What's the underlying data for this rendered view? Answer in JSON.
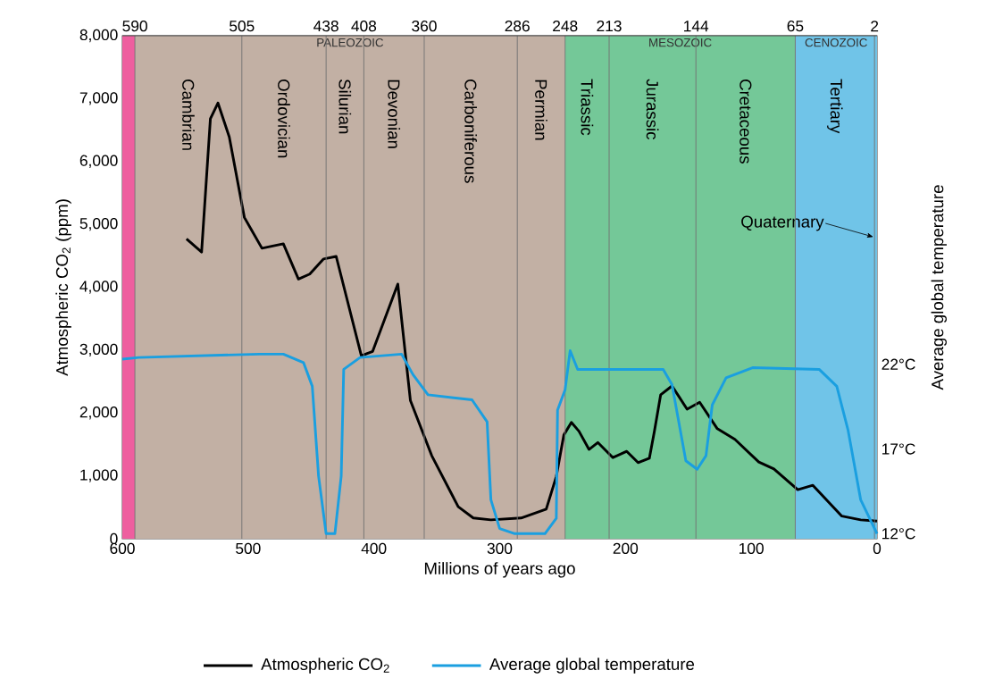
{
  "chart_data": {
    "type": "line",
    "xlabel": "Millions of years ago",
    "ylabel": "Atmospheric CO$_{2}$ (ppm)",
    "y2label": "Average global temperature",
    "xlim": [
      600,
      0
    ],
    "xticks": [
      600,
      500,
      400,
      300,
      200,
      100,
      0
    ],
    "x2lim": [
      600,
      0
    ],
    "x2ticks": [
      590,
      505,
      438,
      408,
      360,
      286,
      248,
      213,
      144,
      65,
      2
    ],
    "ylim": [
      0,
      8000
    ],
    "yticks": [
      {
        "value": 0,
        "label": "0"
      },
      {
        "value": 1000,
        "label": "1,000"
      },
      {
        "value": 2000,
        "label": "2,000"
      },
      {
        "value": 3000,
        "label": "3,000"
      },
      {
        "value": 4000,
        "label": "4,000"
      },
      {
        "value": 5000,
        "label": "5,000"
      },
      {
        "value": 6000,
        "label": "6,000"
      },
      {
        "value": 7000,
        "label": "7,000"
      },
      {
        "value": 8000,
        "label": "8,000"
      }
    ],
    "y2lim": [
      11.7,
      41.4
    ],
    "y2ticks": [
      {
        "value": 12,
        "label": "12°C"
      },
      {
        "value": 17,
        "label": "17°C"
      },
      {
        "value": 22,
        "label": "22°C"
      }
    ],
    "bands": [
      {
        "axis": "x",
        "from": 600,
        "to": 590,
        "color": "#ee5f9f"
      },
      {
        "axis": "x",
        "from": 590,
        "to": 248,
        "color": "#c2b0a4",
        "label": "PALEOZOIC"
      },
      {
        "axis": "x",
        "from": 248,
        "to": 65,
        "color": "#74c898",
        "label": "MESOZOIC"
      },
      {
        "axis": "x",
        "from": 65,
        "to": 0,
        "color": "#70c4e8",
        "label": "CENOZOIC"
      }
    ],
    "annotations": [
      "Cambrian",
      "Ordovician",
      "Silurian",
      "Devonian",
      "Carboniferous",
      "Permian",
      "Triassic",
      "Jurassic",
      "Cretaceous",
      "Tertiary",
      "Quaternary"
    ],
    "grid": "x",
    "legend": "bottom",
    "marker": "none",
    "line_style": "solid",
    "series": [
      {
        "name": "Atmospheric CO$_{2}$",
        "color": "#000000",
        "x": [
          549,
          537,
          530,
          524,
          515,
          503,
          489,
          472,
          460,
          451,
          440,
          430,
          410,
          401,
          381,
          371,
          354,
          333,
          321,
          307,
          283,
          263,
          255,
          249,
          243,
          237,
          229,
          222,
          210,
          199,
          190,
          181,
          177,
          172,
          163,
          151,
          141,
          127,
          113,
          94,
          82,
          63,
          51,
          28,
          13,
          0
        ],
        "values": [
          4770,
          4560,
          6680,
          6930,
          6390,
          5110,
          4620,
          4690,
          4130,
          4210,
          4450,
          4490,
          2910,
          2980,
          4050,
          2200,
          1320,
          510,
          330,
          300,
          330,
          470,
          990,
          1650,
          1850,
          1710,
          1420,
          1530,
          1290,
          1390,
          1210,
          1280,
          1710,
          2290,
          2430,
          2060,
          2170,
          1750,
          1580,
          1220,
          1110,
          780,
          850,
          360,
          300,
          280
        ]
      },
      {
        "name": "Average global temperature",
        "color": "#1a9fe0",
        "axis": "y2",
        "x": [
          600,
          587,
          491,
          472,
          456,
          449,
          444,
          438,
          431,
          426,
          424,
          411,
          378,
          369,
          357,
          322,
          310,
          307,
          300,
          288,
          264,
          255,
          254,
          248,
          244,
          238,
          170,
          163,
          152,
          143,
          136,
          131,
          120,
          99,
          46,
          32,
          23,
          13,
          0
        ],
        "values": [
          22.3,
          22.4,
          22.6,
          22.6,
          22.1,
          20.7,
          15.4,
          12.0,
          12.0,
          15.4,
          21.7,
          22.4,
          22.6,
          21.4,
          20.2,
          19.9,
          18.6,
          14.0,
          12.3,
          12.0,
          12.0,
          12.9,
          19.3,
          20.5,
          22.8,
          21.7,
          21.7,
          20.8,
          16.3,
          15.8,
          16.6,
          19.6,
          21.2,
          21.8,
          21.7,
          20.7,
          18.1,
          14.0,
          12.0
        ]
      }
    ]
  }
}
